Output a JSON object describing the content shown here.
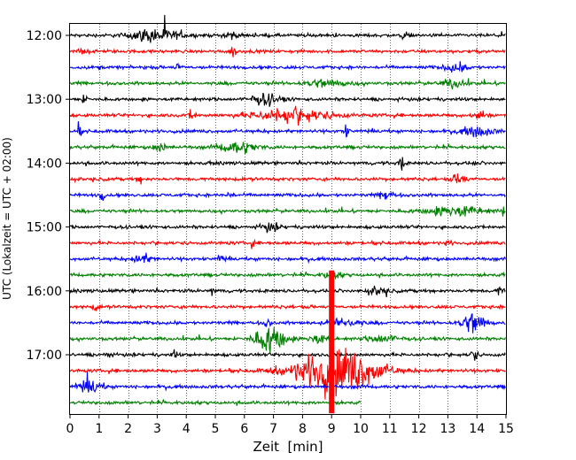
{
  "chart_data": {
    "type": "line",
    "title": "",
    "xlabel": "Zeit  [min]",
    "ylabel": "UTC (Lokalzeit = UTC + 02:00)",
    "xlim": [
      0,
      15
    ],
    "x_ticks": [
      "0",
      "1",
      "2",
      "3",
      "4",
      "5",
      "6",
      "7",
      "8",
      "9",
      "10",
      "11",
      "12",
      "13",
      "14",
      "15"
    ],
    "y_tick_labels": [
      "12:00",
      "13:00",
      "14:00",
      "15:00",
      "16:00",
      "17:00"
    ],
    "grid": "vertical dotted at each minute",
    "trace_colors": [
      "#000000",
      "#ff0000",
      "#0000ff",
      "#008000"
    ],
    "traces": [
      {
        "start": "12:00",
        "color": "#000000",
        "end_min": 15,
        "amplitude": 0.14,
        "events": [
          [
            2.9,
            0.8,
            0.6
          ],
          [
            5.5,
            0.2,
            0.4
          ],
          [
            11.5,
            0.1,
            0.35
          ]
        ]
      },
      {
        "start": "12:15",
        "color": "#ff0000",
        "end_min": 15,
        "amplitude": 0.14,
        "events": [
          [
            0.4,
            0.1,
            0.4
          ],
          [
            5.6,
            0.1,
            0.5
          ]
        ]
      },
      {
        "start": "12:30",
        "color": "#0000ff",
        "end_min": 15,
        "amplitude": 0.14,
        "events": [
          [
            3.7,
            0.05,
            0.7
          ],
          [
            13.3,
            0.4,
            0.35
          ]
        ]
      },
      {
        "start": "12:45",
        "color": "#008000",
        "end_min": 15,
        "amplitude": 0.14,
        "events": [
          [
            8.8,
            0.7,
            0.35
          ],
          [
            13.2,
            0.4,
            0.35
          ]
        ]
      },
      {
        "start": "13:00",
        "color": "#000000",
        "end_min": 15,
        "amplitude": 0.14,
        "events": [
          [
            6.7,
            0.5,
            0.45
          ],
          [
            0.5,
            0.1,
            0.4
          ]
        ]
      },
      {
        "start": "13:15",
        "color": "#ff0000",
        "end_min": 15,
        "amplitude": 0.14,
        "events": [
          [
            7.6,
            1.3,
            0.6
          ],
          [
            4.2,
            0.1,
            0.6
          ],
          [
            14.1,
            0.2,
            0.45
          ]
        ]
      },
      {
        "start": "13:30",
        "color": "#0000ff",
        "end_min": 15,
        "amplitude": 0.14,
        "events": [
          [
            14.0,
            0.5,
            0.45
          ],
          [
            9.5,
            0.1,
            0.5
          ],
          [
            0.3,
            0.1,
            0.4
          ]
        ]
      },
      {
        "start": "13:45",
        "color": "#008000",
        "end_min": 15,
        "amplitude": 0.14,
        "events": [
          [
            5.8,
            0.6,
            0.5
          ],
          [
            3.1,
            0.2,
            0.4
          ]
        ]
      },
      {
        "start": "14:00",
        "color": "#000000",
        "end_min": 15,
        "amplitude": 0.14,
        "events": [
          [
            11.4,
            0.1,
            0.6
          ]
        ]
      },
      {
        "start": "14:15",
        "color": "#ff0000",
        "end_min": 15,
        "amplitude": 0.14,
        "events": [
          [
            13.4,
            0.2,
            0.6
          ],
          [
            2.4,
            0.1,
            0.35
          ]
        ]
      },
      {
        "start": "14:30",
        "color": "#0000ff",
        "end_min": 15,
        "amplitude": 0.14,
        "events": [
          [
            10.9,
            0.2,
            0.5
          ],
          [
            1.1,
            0.1,
            0.45
          ],
          [
            5.5,
            0.1,
            0.4
          ]
        ]
      },
      {
        "start": "14:45",
        "color": "#008000",
        "end_min": 15,
        "amplitude": 0.14,
        "events": [
          [
            13.3,
            1.0,
            0.45
          ],
          [
            14.9,
            0.05,
            0.4
          ]
        ]
      },
      {
        "start": "15:00",
        "color": "#000000",
        "end_min": 15,
        "amplitude": 0.14,
        "events": [
          [
            6.9,
            0.3,
            0.35
          ]
        ]
      },
      {
        "start": "15:15",
        "color": "#ff0000",
        "end_min": 15,
        "amplitude": 0.14,
        "events": [
          [
            6.3,
            0.05,
            0.35
          ],
          [
            13.0,
            0.1,
            0.3
          ]
        ]
      },
      {
        "start": "15:30",
        "color": "#0000ff",
        "end_min": 15,
        "amplitude": 0.14,
        "events": [
          [
            2.5,
            0.3,
            0.4
          ],
          [
            5.2,
            0.1,
            0.35
          ]
        ]
      },
      {
        "start": "15:45",
        "color": "#008000",
        "end_min": 15,
        "amplitude": 0.14,
        "events": [
          [
            9.0,
            0.3,
            0.3
          ]
        ]
      },
      {
        "start": "16:00",
        "color": "#000000",
        "end_min": 15,
        "amplitude": 0.14,
        "events": [
          [
            10.6,
            0.3,
            0.35
          ],
          [
            14.8,
            0.1,
            0.4
          ],
          [
            4.9,
            0.1,
            0.3
          ]
        ]
      },
      {
        "start": "16:15",
        "color": "#ff0000",
        "end_min": 15,
        "amplitude": 0.14,
        "events": [
          [
            0.9,
            0.1,
            0.3
          ]
        ]
      },
      {
        "start": "16:30",
        "color": "#0000ff",
        "end_min": 15,
        "amplitude": 0.14,
        "events": [
          [
            13.9,
            0.4,
            1.0
          ],
          [
            9.4,
            0.5,
            0.45
          ],
          [
            6.8,
            0.1,
            0.35
          ]
        ]
      },
      {
        "start": "16:45",
        "color": "#008000",
        "end_min": 15,
        "amplitude": 0.14,
        "events": [
          [
            6.9,
            0.5,
            1.3
          ],
          [
            8.5,
            0.3,
            0.4
          ],
          [
            10.8,
            0.5,
            0.35
          ]
        ]
      },
      {
        "start": "17:00",
        "color": "#000000",
        "end_min": 15,
        "amplitude": 0.14,
        "events": [
          [
            13.9,
            0.1,
            0.7
          ],
          [
            3.6,
            0.1,
            0.35
          ],
          [
            1.3,
            0.1,
            0.35
          ]
        ]
      },
      {
        "start": "17:15",
        "color": "#ff0000",
        "end_min": 15,
        "amplitude": 0.14,
        "events": [
          [
            9.2,
            1.3,
            2.2
          ],
          [
            7.0,
            0.1,
            0.35
          ]
        ]
      },
      {
        "start": "17:30",
        "color": "#0000ff",
        "end_min": 15,
        "amplitude": 0.14,
        "events": [
          [
            0.7,
            0.4,
            0.55
          ]
        ]
      },
      {
        "start": "17:45",
        "color": "#008000",
        "end_min": 10,
        "amplitude": 0.14,
        "events": []
      }
    ],
    "spike": {
      "x": 9.0,
      "from_trace": 15,
      "to_trace": 23,
      "color": "#ff0000"
    }
  }
}
